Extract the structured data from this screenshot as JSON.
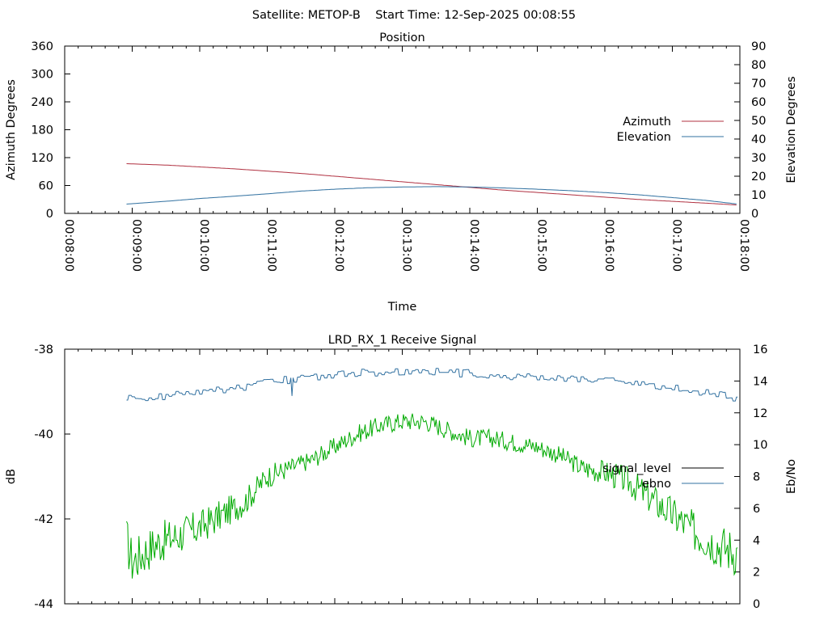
{
  "header": {
    "title": "Satellite: METOP-B    Start Time: 12-Sep-2025 00:08:55"
  },
  "chart_data": [
    {
      "type": "line",
      "title": "Position",
      "xlabel": "Time",
      "ylabel": "Azimuth Degrees",
      "y2label": "Elevation Degrees",
      "x_ticks": [
        "00:08:00",
        "00:09:00",
        "00:10:00",
        "00:11:00",
        "00:12:00",
        "00:13:00",
        "00:14:00",
        "00:15:00",
        "00:16:00",
        "00:17:00",
        "00:18:00"
      ],
      "xlim": [
        "00:08:00",
        "00:18:00"
      ],
      "ylim": [
        0,
        360
      ],
      "y_ticks": [
        0,
        60,
        120,
        180,
        240,
        300,
        360
      ],
      "y2lim": [
        0,
        90
      ],
      "y2_ticks": [
        0,
        10,
        20,
        30,
        40,
        50,
        60,
        70,
        80,
        90
      ],
      "legend_position": "right",
      "series": [
        {
          "name": "Azimuth",
          "axis": "y",
          "color": "#b03040",
          "x": [
            "00:08:55",
            "00:09:30",
            "00:10:00",
            "00:10:30",
            "00:11:00",
            "00:11:30",
            "00:12:00",
            "00:12:30",
            "00:13:00",
            "00:13:30",
            "00:14:00",
            "00:14:30",
            "00:15:00",
            "00:15:30",
            "00:16:00",
            "00:16:30",
            "00:17:00",
            "00:17:30",
            "00:17:58"
          ],
          "values": [
            107,
            104,
            100,
            96,
            91,
            86,
            80,
            74,
            68,
            62,
            56,
            50,
            45,
            40,
            35,
            30,
            26,
            22,
            18
          ]
        },
        {
          "name": "Elevation",
          "axis": "y2",
          "color": "#3070a0",
          "x": [
            "00:08:55",
            "00:09:30",
            "00:10:00",
            "00:10:30",
            "00:11:00",
            "00:11:30",
            "00:12:00",
            "00:12:30",
            "00:13:00",
            "00:13:30",
            "00:14:00",
            "00:14:30",
            "00:15:00",
            "00:15:30",
            "00:16:00",
            "00:16:30",
            "00:17:00",
            "00:17:30",
            "00:17:58"
          ],
          "values": [
            5,
            6.5,
            8,
            9.2,
            10.5,
            12,
            13,
            13.8,
            14.2,
            14.4,
            14.2,
            13.7,
            13,
            12.2,
            11.2,
            10,
            8.5,
            7,
            5
          ]
        }
      ]
    },
    {
      "type": "line",
      "title": "LRD_RX_1 Receive Signal",
      "ylabel": "dB",
      "y2label": "Eb/No",
      "ylim": [
        -44,
        -38
      ],
      "y_ticks": [
        -44,
        -42,
        -40,
        -38
      ],
      "y2lim": [
        0,
        16
      ],
      "y2_ticks": [
        0,
        2,
        4,
        6,
        8,
        10,
        12,
        14,
        16
      ],
      "legend_position": "right",
      "legend": [
        "signal_level",
        "ebno"
      ],
      "series": [
        {
          "name": "signal_level",
          "axis": "y",
          "color": "#00aa00",
          "x": [
            "00:08:55",
            "00:09:00",
            "00:09:20",
            "00:09:40",
            "00:10:00",
            "00:10:20",
            "00:10:40",
            "00:11:00",
            "00:11:20",
            "00:11:40",
            "00:12:00",
            "00:12:20",
            "00:12:40",
            "00:13:00",
            "00:13:20",
            "00:13:40",
            "00:14:00",
            "00:14:20",
            "00:14:40",
            "00:15:00",
            "00:15:20",
            "00:15:40",
            "00:16:00",
            "00:16:20",
            "00:16:40",
            "00:17:00",
            "00:17:20",
            "00:17:40",
            "00:17:58"
          ],
          "values": [
            -42.5,
            -43.0,
            -42.6,
            -42.4,
            -42.2,
            -41.9,
            -41.6,
            -41.0,
            -40.8,
            -40.6,
            -40.3,
            -40.0,
            -39.8,
            -39.7,
            -39.7,
            -39.9,
            -40.1,
            -40.1,
            -40.2,
            -40.3,
            -40.5,
            -40.8,
            -40.9,
            -41.1,
            -41.5,
            -41.9,
            -42.3,
            -42.6,
            -42.8
          ]
        },
        {
          "name": "ebno",
          "axis": "y2",
          "color": "#3070a0",
          "x": [
            "00:08:55",
            "00:09:00",
            "00:09:20",
            "00:09:40",
            "00:10:00",
            "00:10:20",
            "00:10:40",
            "00:11:00",
            "00:11:20",
            "00:11:40",
            "00:12:00",
            "00:12:20",
            "00:12:40",
            "00:13:00",
            "00:13:20",
            "00:13:40",
            "00:14:00",
            "00:14:20",
            "00:14:40",
            "00:15:00",
            "00:15:20",
            "00:15:40",
            "00:16:00",
            "00:16:20",
            "00:16:40",
            "00:17:00",
            "00:17:20",
            "00:17:40",
            "00:17:58"
          ],
          "values": [
            12.8,
            13.0,
            13.0,
            13.1,
            13.3,
            13.4,
            13.6,
            13.9,
            14.1,
            14.2,
            14.4,
            14.5,
            14.5,
            14.6,
            14.6,
            14.5,
            14.5,
            14.4,
            14.3,
            14.3,
            14.2,
            14.1,
            14.0,
            13.9,
            13.8,
            13.6,
            13.4,
            13.1,
            12.9
          ]
        }
      ]
    }
  ]
}
